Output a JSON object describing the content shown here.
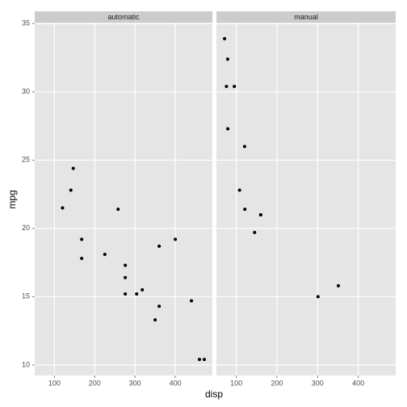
{
  "xlabel": "disp",
  "ylabel": "mpg",
  "chart_data": [
    {
      "type": "scatter",
      "title": "automatic",
      "color": "#000000",
      "grid": true,
      "x": [
        258,
        360,
        225,
        360,
        146.7,
        140.8,
        167.6,
        167.6,
        275.8,
        275.8,
        275.8,
        472,
        460,
        440,
        120.1,
        318,
        304,
        350,
        400
      ],
      "values": [
        21.4,
        18.7,
        18.1,
        14.3,
        24.4,
        22.8,
        19.2,
        17.8,
        16.4,
        17.3,
        15.2,
        10.4,
        10.4,
        14.7,
        21.5,
        15.5,
        15.2,
        13.3,
        19.2
      ],
      "xlim": [
        51.05,
        492.05
      ],
      "xticks": [
        100,
        200,
        300,
        400
      ],
      "ylim": [
        9.225,
        35.075
      ],
      "yticks": [
        10,
        15,
        20,
        25,
        30,
        35
      ]
    },
    {
      "type": "scatter",
      "title": "manual",
      "color": "#000000",
      "grid": true,
      "x": [
        160,
        160,
        108,
        78.7,
        75.7,
        71.1,
        79,
        120.3,
        95.1,
        351,
        145,
        301,
        121
      ],
      "values": [
        21,
        21,
        22.8,
        32.4,
        30.4,
        33.9,
        27.3,
        26,
        30.4,
        15.8,
        19.7,
        15,
        21.4
      ],
      "xlim": [
        51.05,
        492.05
      ],
      "xticks": [
        100,
        200,
        300,
        400
      ],
      "ylim": [
        9.225,
        35.075
      ],
      "yticks": [
        10,
        15,
        20,
        25,
        30,
        35
      ]
    }
  ]
}
